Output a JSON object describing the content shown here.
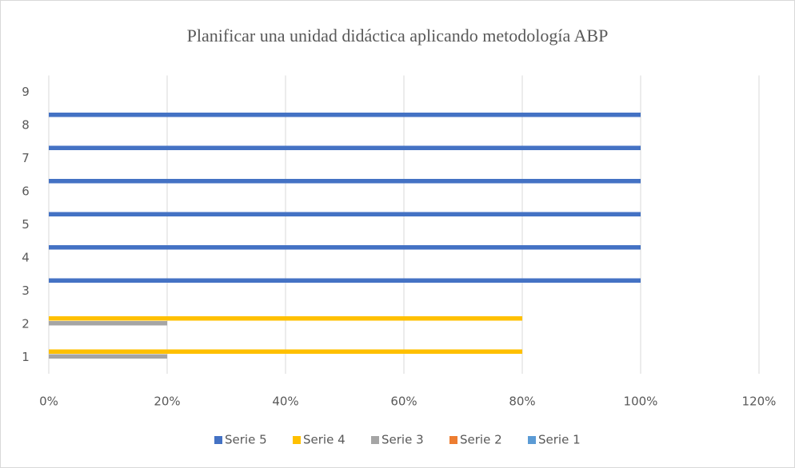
{
  "chart_data": {
    "type": "hbar",
    "title": "Planificar una unidad didáctica aplicando metodología ABP",
    "categories": [
      "1",
      "2",
      "3",
      "4",
      "5",
      "6",
      "7",
      "8",
      "9"
    ],
    "series": [
      {
        "name": "Serie 5",
        "color": "#4472c4",
        "values": [
          0,
          0,
          100,
          100,
          100,
          100,
          100,
          100,
          0
        ]
      },
      {
        "name": "Serie 4",
        "color": "#ffc000",
        "values": [
          80,
          80,
          0,
          0,
          0,
          0,
          0,
          0,
          0
        ]
      },
      {
        "name": "Serie 3",
        "color": "#a5a5a5",
        "values": [
          20,
          20,
          0,
          0,
          0,
          0,
          0,
          0,
          0
        ]
      },
      {
        "name": "Serie 2",
        "color": "#ed7d31",
        "values": [
          0,
          0,
          0,
          0,
          0,
          0,
          0,
          0,
          0
        ]
      },
      {
        "name": "Serie 1",
        "color": "#5b9bd5",
        "values": [
          0,
          0,
          0,
          0,
          0,
          0,
          0,
          0,
          0
        ]
      }
    ],
    "xlim": [
      0,
      120
    ],
    "xticks": [
      {
        "value": 0,
        "label": "0%"
      },
      {
        "value": 20,
        "label": "20%"
      },
      {
        "value": 40,
        "label": "40%"
      },
      {
        "value": 60,
        "label": "60%"
      },
      {
        "value": 80,
        "label": "80%"
      },
      {
        "value": 100,
        "label": "100%"
      },
      {
        "value": 120,
        "label": "120%"
      }
    ],
    "grid": true,
    "legend": "bottom"
  }
}
